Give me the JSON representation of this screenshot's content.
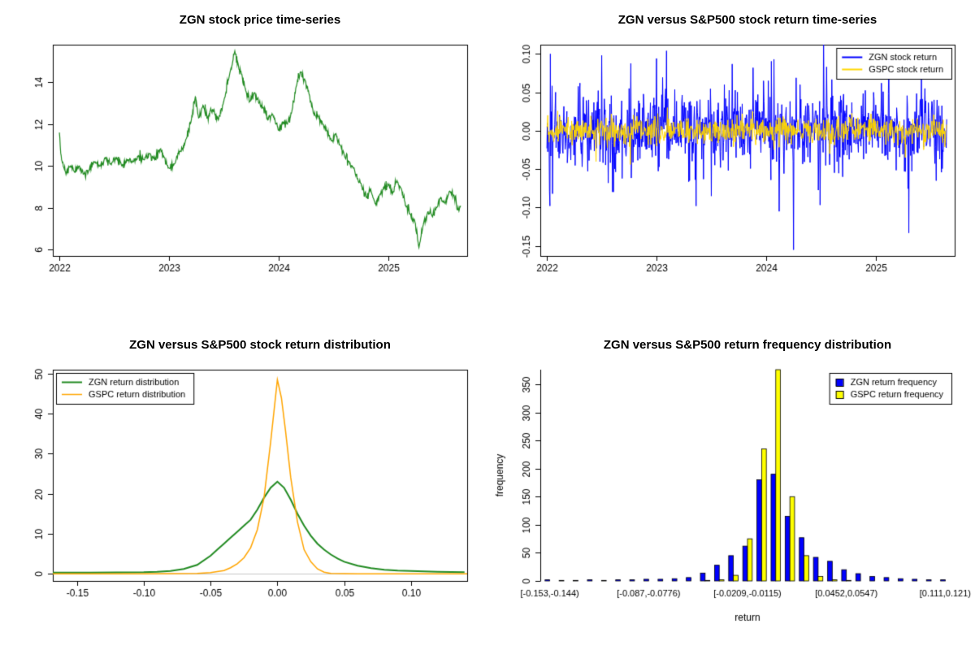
{
  "page": {
    "background": "#FFFFFF"
  },
  "chart_data": [
    {
      "id": "price",
      "type": "line",
      "title": "ZGN stock price time-series",
      "xlabel": "",
      "ylabel": "",
      "xlim": [
        2021.94,
        2025.72
      ],
      "ylim": [
        5.7,
        15.8
      ],
      "xtick_values": [
        2022,
        2023,
        2024,
        2025
      ],
      "xtick_labels": [
        "2022",
        "2023",
        "2024",
        "2025"
      ],
      "ytick_values": [
        6,
        8,
        10,
        12,
        14
      ],
      "ytick_labels": [
        "6",
        "8",
        "10",
        "12",
        "14"
      ],
      "series": [
        {
          "name": "ZGN stock price",
          "color": "#228B22",
          "width": 1.2,
          "noise_sd": 0.12,
          "noise_seed": 5,
          "keypoints": [
            [
              2022.0,
              11.6
            ],
            [
              2022.02,
              10.3
            ],
            [
              2022.06,
              9.6
            ],
            [
              2022.1,
              10.0
            ],
            [
              2022.14,
              9.7
            ],
            [
              2022.18,
              10.0
            ],
            [
              2022.22,
              9.6
            ],
            [
              2022.27,
              9.8
            ],
            [
              2022.32,
              10.2
            ],
            [
              2022.37,
              10.0
            ],
            [
              2022.42,
              10.4
            ],
            [
              2022.47,
              10.1
            ],
            [
              2022.52,
              10.4
            ],
            [
              2022.57,
              10.0
            ],
            [
              2022.62,
              10.3
            ],
            [
              2022.67,
              10.2
            ],
            [
              2022.72,
              10.5
            ],
            [
              2022.77,
              10.3
            ],
            [
              2022.82,
              10.6
            ],
            [
              2022.87,
              10.3
            ],
            [
              2022.92,
              10.8
            ],
            [
              2022.96,
              10.4
            ],
            [
              2023.0,
              9.9
            ],
            [
              2023.05,
              10.1
            ],
            [
              2023.1,
              10.7
            ],
            [
              2023.15,
              11.2
            ],
            [
              2023.2,
              12.1
            ],
            [
              2023.24,
              13.3
            ],
            [
              2023.27,
              12.3
            ],
            [
              2023.31,
              12.9
            ],
            [
              2023.35,
              12.3
            ],
            [
              2023.4,
              12.7
            ],
            [
              2023.45,
              12.2
            ],
            [
              2023.5,
              13.1
            ],
            [
              2023.55,
              14.3
            ],
            [
              2023.6,
              15.5
            ],
            [
              2023.63,
              14.9
            ],
            [
              2023.66,
              14.4
            ],
            [
              2023.7,
              13.6
            ],
            [
              2023.74,
              13.1
            ],
            [
              2023.78,
              13.5
            ],
            [
              2023.82,
              13.0
            ],
            [
              2023.86,
              12.8
            ],
            [
              2023.9,
              12.2
            ],
            [
              2023.94,
              12.5
            ],
            [
              2024.0,
              11.7
            ],
            [
              2024.04,
              12.1
            ],
            [
              2024.08,
              12.0
            ],
            [
              2024.12,
              12.6
            ],
            [
              2024.16,
              13.8
            ],
            [
              2024.2,
              14.5
            ],
            [
              2024.24,
              14.1
            ],
            [
              2024.28,
              13.4
            ],
            [
              2024.32,
              12.5
            ],
            [
              2024.36,
              12.4
            ],
            [
              2024.4,
              12.0
            ],
            [
              2024.44,
              11.7
            ],
            [
              2024.48,
              11.2
            ],
            [
              2024.52,
              11.5
            ],
            [
              2024.56,
              11.0
            ],
            [
              2024.6,
              10.5
            ],
            [
              2024.64,
              10.2
            ],
            [
              2024.68,
              9.9
            ],
            [
              2024.72,
              9.4
            ],
            [
              2024.76,
              9.0
            ],
            [
              2024.8,
              8.5
            ],
            [
              2024.84,
              8.9
            ],
            [
              2024.88,
              8.2
            ],
            [
              2024.92,
              8.6
            ],
            [
              2024.96,
              9.0
            ],
            [
              2025.0,
              9.1
            ],
            [
              2025.04,
              8.7
            ],
            [
              2025.08,
              9.3
            ],
            [
              2025.12,
              8.9
            ],
            [
              2025.16,
              8.1
            ],
            [
              2025.2,
              7.7
            ],
            [
              2025.24,
              7.4
            ],
            [
              2025.28,
              6.1
            ],
            [
              2025.32,
              7.2
            ],
            [
              2025.36,
              7.8
            ],
            [
              2025.4,
              7.6
            ],
            [
              2025.44,
              8.0
            ],
            [
              2025.48,
              8.5
            ],
            [
              2025.52,
              8.2
            ],
            [
              2025.56,
              8.8
            ],
            [
              2025.6,
              8.6
            ],
            [
              2025.63,
              7.9
            ],
            [
              2025.66,
              8.1
            ]
          ]
        }
      ]
    },
    {
      "id": "returns",
      "type": "line",
      "title": "ZGN versus S&P500 stock return time-series",
      "xlabel": "",
      "ylabel": "",
      "xlim": [
        2021.94,
        2025.72
      ],
      "ylim": [
        -0.163,
        0.112
      ],
      "xtick_values": [
        2022,
        2023,
        2024,
        2025
      ],
      "xtick_labels": [
        "2022",
        "2023",
        "2024",
        "2025"
      ],
      "ytick_values": [
        -0.15,
        -0.1,
        -0.05,
        0.0,
        0.05,
        0.1
      ],
      "ytick_labels": [
        "-0.15",
        "-0.10",
        "-0.05",
        "0.00",
        "0.05",
        "0.10"
      ],
      "legend": {
        "position": "topright",
        "marker": "line",
        "entries": [
          {
            "label": "ZGN stock return",
            "color": "#0000FF",
            "width": 2
          },
          {
            "label": "GSPC stock return",
            "color": "#FFD700",
            "width": 2
          }
        ]
      },
      "series": [
        {
          "name": "ZGN stock return",
          "color": "#0000FF",
          "width": 1,
          "random_walk": {
            "from": 2022.0,
            "to": 2025.65,
            "sd": 0.024,
            "fat_prob": 0.05,
            "fat_scale": 2.0,
            "seed": 42
          },
          "spikes": [
            [
              2022.03,
              0.1
            ],
            [
              2022.05,
              -0.082
            ],
            [
              2022.3,
              0.062
            ],
            [
              2022.5,
              0.098
            ],
            [
              2022.56,
              -0.068
            ],
            [
              2022.75,
              0.055
            ],
            [
              2023.09,
              0.104
            ],
            [
              2023.3,
              -0.065
            ],
            [
              2023.36,
              -0.098
            ],
            [
              2023.5,
              -0.085
            ],
            [
              2023.62,
              0.06
            ],
            [
              2023.88,
              0.082
            ],
            [
              2024.02,
              0.065
            ],
            [
              2024.07,
              0.093
            ],
            [
              2024.12,
              -0.105
            ],
            [
              2024.25,
              -0.155
            ],
            [
              2024.31,
              0.06
            ],
            [
              2024.55,
              0.083
            ],
            [
              2024.7,
              -0.06
            ],
            [
              2025.05,
              0.062
            ],
            [
              2025.12,
              0.093
            ],
            [
              2025.3,
              -0.133
            ],
            [
              2025.45,
              0.055
            ],
            [
              2025.55,
              -0.065
            ]
          ]
        },
        {
          "name": "GSPC stock return",
          "color": "#FFD700",
          "width": 1,
          "random_walk": {
            "from": 2022.0,
            "to": 2025.65,
            "sd": 0.0085,
            "fat_prob": 0.04,
            "fat_scale": 1.8,
            "seed": 99
          },
          "spikes": [
            [
              2022.45,
              -0.04
            ],
            [
              2022.76,
              -0.044
            ],
            [
              2023.1,
              0.03
            ],
            [
              2024.58,
              -0.03
            ],
            [
              2025.27,
              -0.035
            ]
          ]
        }
      ]
    },
    {
      "id": "density",
      "type": "line",
      "title": "ZGN versus S&P500 stock return distribution",
      "xlabel": "",
      "ylabel": "",
      "xlim": [
        -0.168,
        0.142
      ],
      "ylim": [
        -1.8,
        51
      ],
      "xtick_values": [
        -0.15,
        -0.1,
        -0.05,
        0.0,
        0.05,
        0.1
      ],
      "xtick_labels": [
        "-0.15",
        "-0.10",
        "-0.05",
        "0.00",
        "0.05",
        "0.10"
      ],
      "ytick_values": [
        0,
        10,
        20,
        30,
        40,
        50
      ],
      "ytick_labels": [
        "0",
        "10",
        "20",
        "30",
        "40",
        "50"
      ],
      "hlines": [
        {
          "y": 0,
          "color": "#C8C8C8"
        }
      ],
      "legend": {
        "position": "topleft",
        "marker": "line",
        "entries": [
          {
            "label": "ZGN return distribution",
            "color": "#228B22",
            "width": 2
          },
          {
            "label": "GSPC return distribution",
            "color": "#FFA500",
            "width": 1.5
          }
        ]
      },
      "series": [
        {
          "name": "ZGN return distribution",
          "color": "#228B22",
          "width": 2,
          "points": [
            [
              -0.168,
              0.3
            ],
            [
              -0.16,
              0.3
            ],
            [
              -0.14,
              0.3
            ],
            [
              -0.12,
              0.35
            ],
            [
              -0.1,
              0.4
            ],
            [
              -0.09,
              0.5
            ],
            [
              -0.08,
              0.7
            ],
            [
              -0.07,
              1.2
            ],
            [
              -0.06,
              2.2
            ],
            [
              -0.05,
              4.5
            ],
            [
              -0.045,
              6.0
            ],
            [
              -0.04,
              7.5
            ],
            [
              -0.035,
              9.0
            ],
            [
              -0.03,
              10.5
            ],
            [
              -0.025,
              12.0
            ],
            [
              -0.02,
              13.5
            ],
            [
              -0.015,
              16.0
            ],
            [
              -0.01,
              19.0
            ],
            [
              -0.005,
              21.5
            ],
            [
              0.0,
              23.0
            ],
            [
              0.005,
              21.5
            ],
            [
              0.01,
              18.5
            ],
            [
              0.015,
              15.0
            ],
            [
              0.02,
              12.0
            ],
            [
              0.025,
              9.5
            ],
            [
              0.03,
              7.5
            ],
            [
              0.035,
              6.0
            ],
            [
              0.04,
              4.8
            ],
            [
              0.045,
              3.8
            ],
            [
              0.05,
              3.0
            ],
            [
              0.06,
              2.0
            ],
            [
              0.07,
              1.4
            ],
            [
              0.08,
              1.0
            ],
            [
              0.09,
              0.8
            ],
            [
              0.1,
              0.7
            ],
            [
              0.11,
              0.6
            ],
            [
              0.12,
              0.5
            ],
            [
              0.13,
              0.45
            ],
            [
              0.14,
              0.4
            ]
          ]
        },
        {
          "name": "GSPC return distribution",
          "color": "#FFA500",
          "width": 1.5,
          "points": [
            [
              -0.168,
              0.0
            ],
            [
              -0.1,
              0.0
            ],
            [
              -0.08,
              0.02
            ],
            [
              -0.06,
              0.1
            ],
            [
              -0.05,
              0.3
            ],
            [
              -0.04,
              0.8
            ],
            [
              -0.035,
              1.5
            ],
            [
              -0.03,
              2.5
            ],
            [
              -0.025,
              4.0
            ],
            [
              -0.02,
              6.5
            ],
            [
              -0.015,
              11.0
            ],
            [
              -0.01,
              19.0
            ],
            [
              -0.005,
              33.0
            ],
            [
              0.0,
              48.5
            ],
            [
              0.003,
              44.0
            ],
            [
              0.006,
              36.0
            ],
            [
              0.01,
              24.0
            ],
            [
              0.015,
              13.0
            ],
            [
              0.02,
              6.0
            ],
            [
              0.025,
              3.0
            ],
            [
              0.03,
              1.2
            ],
            [
              0.035,
              0.4
            ],
            [
              0.04,
              0.1
            ],
            [
              0.05,
              0.02
            ],
            [
              0.06,
              0.0
            ],
            [
              0.142,
              0.0
            ]
          ]
        }
      ]
    },
    {
      "id": "hist",
      "type": "bar",
      "box": false,
      "title": "ZGN versus S&P500 return frequency distribution",
      "xlabel": "return",
      "ylabel": "frequency",
      "bins": 29,
      "ylim": [
        0,
        376
      ],
      "ytick_values": [
        0,
        50,
        100,
        150,
        200,
        250,
        300,
        350
      ],
      "ytick_labels": [
        "0",
        "50",
        "100",
        "150",
        "200",
        "250",
        "300",
        "350"
      ],
      "xtick_bins": [
        0,
        7,
        14,
        21,
        28
      ],
      "xtick_labels": [
        "[-0.153,-0.144)",
        "[-0.087,-0.0776)",
        "[-0.0209,-0.0115)",
        "[0.0452,0.0547)",
        "[0.111,0.121)"
      ],
      "legend": {
        "position": "topright",
        "marker": "square",
        "entries": [
          {
            "label": "ZGN return frequency",
            "color": "#0000FF"
          },
          {
            "label": "GSPC return frequency",
            "color": "#FFFF00"
          }
        ]
      },
      "series": [
        {
          "name": "ZGN return frequency",
          "color": "#0000FF",
          "values": [
            2,
            1,
            1,
            2,
            1,
            2,
            2,
            3,
            3,
            4,
            6,
            14,
            28,
            45,
            62,
            180,
            190,
            115,
            77,
            42,
            35,
            20,
            13,
            8,
            6,
            4,
            3,
            2,
            2
          ]
        },
        {
          "name": "GSPC return frequency",
          "color": "#FFFF00",
          "values": [
            0,
            0,
            0,
            0,
            0,
            0,
            0,
            0,
            0,
            0,
            0,
            1,
            2,
            10,
            75,
            235,
            380,
            150,
            45,
            8,
            2,
            1,
            0,
            0,
            0,
            0,
            0,
            0,
            0
          ]
        }
      ]
    }
  ]
}
